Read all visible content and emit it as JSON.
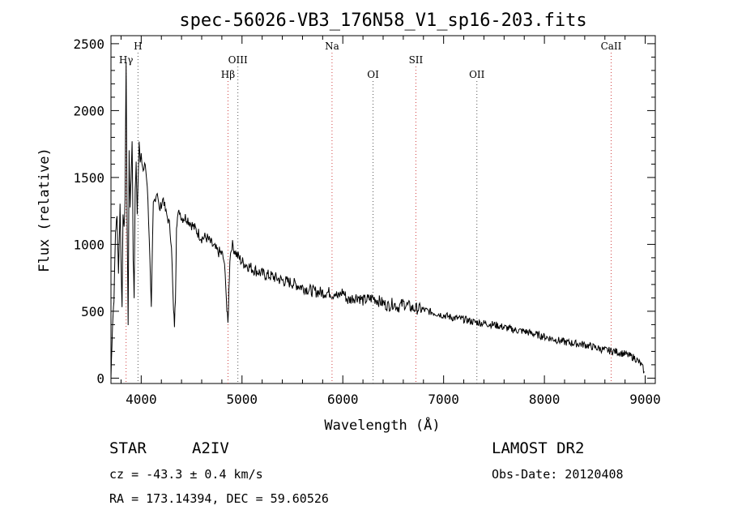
{
  "chart_data": {
    "type": "line",
    "title": "spec-56026-VB3_176N58_V1_sp16-203.fits",
    "xlabel": "Wavelength (Å)",
    "ylabel": "Flux (relative)",
    "xlim": [
      3700,
      9100
    ],
    "ylim": [
      -40,
      2560
    ],
    "x_ticks": [
      "4000",
      "5000",
      "6000",
      "7000",
      "8000",
      "9000"
    ],
    "x_tick_values": [
      4000,
      5000,
      6000,
      7000,
      8000,
      9000
    ],
    "y_ticks": [
      "0",
      "500",
      "1000",
      "1500",
      "2000",
      "2500"
    ],
    "y_tick_values": [
      0,
      500,
      1000,
      1500,
      2000,
      2500
    ],
    "grid": false,
    "series": [
      {
        "x": [
          3700,
          3715,
          3730,
          3745,
          3760,
          3775,
          3790,
          3800,
          3810,
          3820,
          3830,
          3840,
          3850,
          3860,
          3870,
          3880,
          3890,
          3900,
          3910,
          3920,
          3930,
          3940,
          3950,
          3960,
          3970,
          3980,
          3990,
          4000,
          4020,
          4040,
          4060,
          4080,
          4100,
          4120,
          4140,
          4160,
          4180,
          4200,
          4220,
          4240,
          4260,
          4280,
          4300,
          4320,
          4330,
          4340,
          4350,
          4360,
          4380,
          4400,
          4450,
          4500,
          4550,
          4600,
          4650,
          4700,
          4750,
          4800,
          4820,
          4840,
          4850,
          4860,
          4870,
          4880,
          4900,
          4950,
          5000,
          5100,
          5200,
          5300,
          5400,
          5500,
          5600,
          5700,
          5800,
          5880,
          5900,
          5920,
          5950,
          6000,
          6050,
          6100,
          6150,
          6200,
          6250,
          6300,
          6350,
          6400,
          6450,
          6500,
          6550,
          6600,
          6650,
          6700,
          6750,
          6800,
          6850,
          6900,
          6950,
          7000,
          7100,
          7200,
          7300,
          7400,
          7500,
          7600,
          7700,
          7800,
          7900,
          8000,
          8100,
          8200,
          8300,
          8400,
          8500,
          8600,
          8700,
          8800,
          8900,
          8960,
          8990
        ],
        "y": [
          0,
          400,
          600,
          1100,
          1200,
          800,
          1300,
          900,
          500,
          1250,
          1100,
          1350,
          2350,
          1200,
          400,
          1700,
          1300,
          1500,
          1800,
          900,
          600,
          1400,
          1600,
          1250,
          1500,
          1800,
          1600,
          1650,
          1550,
          1600,
          1450,
          1050,
          500,
          1300,
          1350,
          1400,
          1250,
          1300,
          1350,
          1250,
          1200,
          1150,
          1000,
          500,
          400,
          600,
          1150,
          1200,
          1250,
          1200,
          1200,
          1150,
          1100,
          1050,
          1050,
          1000,
          950,
          930,
          880,
          700,
          500,
          400,
          650,
          900,
          1000,
          920,
          870,
          820,
          780,
          760,
          730,
          710,
          680,
          650,
          640,
          640,
          620,
          650,
          600,
          650,
          580,
          600,
          610,
          580,
          590,
          600,
          580,
          560,
          540,
          560,
          530,
          560,
          540,
          520,
          520,
          510,
          500,
          490,
          480,
          470,
          450,
          440,
          420,
          410,
          400,
          380,
          360,
          350,
          330,
          310,
          290,
          270,
          260,
          250,
          230,
          210,
          200,
          180,
          150,
          100,
          50
        ],
        "color": "#000000"
      }
    ],
    "line_markers": [
      {
        "label": "Hγ",
        "x": 3850,
        "row": 1
      },
      {
        "label": "H",
        "x": 3968,
        "row": 0
      },
      {
        "label": "Hβ",
        "x": 4861,
        "row": 2
      },
      {
        "label": "OIII",
        "x": 4959,
        "row": 1
      },
      {
        "label": "Na",
        "x": 5893,
        "row": 0
      },
      {
        "label": "OI",
        "x": 6300,
        "row": 2
      },
      {
        "label": "SII",
        "x": 6725,
        "row": 1
      },
      {
        "label": "OII",
        "x": 7330,
        "row": 2
      },
      {
        "label": "CaII",
        "x": 8662,
        "row": 0
      }
    ]
  },
  "info": {
    "object_class": "STAR",
    "subclass": "A2IV",
    "survey": "LAMOST DR2",
    "redshift": "cz = -43.3 ± 0.4 km/s",
    "obs_date": "Obs-Date: 20120408",
    "coords": "RA = 173.14394, DEC =  59.60526"
  }
}
